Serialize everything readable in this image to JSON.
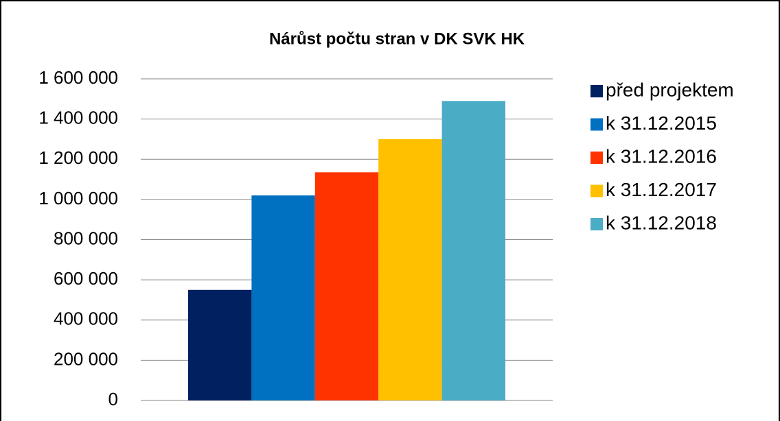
{
  "chart_data": {
    "type": "bar",
    "title": "Nárůst počtu stran v DK SVK HK",
    "categories": [
      null
    ],
    "series": [
      {
        "name": "před projektem",
        "color": "#002060",
        "values": [
          550000
        ]
      },
      {
        "name": "k 31.12.2015",
        "color": "#0070c0",
        "values": [
          1020000
        ]
      },
      {
        "name": "k 31.12.2016",
        "color": "#ff3300",
        "values": [
          1135000
        ]
      },
      {
        "name": "k 31.12.2017",
        "color": "#ffc000",
        "values": [
          1300000
        ]
      },
      {
        "name": "k 31.12.2018",
        "color": "#4bacc6",
        "values": [
          1490000
        ]
      }
    ],
    "ylim": [
      0,
      1600000
    ],
    "yticks": [
      0,
      {
        "value": 200000,
        "label": "200 000"
      },
      {
        "value": 400000,
        "label": "400 000"
      },
      {
        "value": 600000,
        "label": "600 000"
      },
      {
        "value": 800000,
        "label": "800 000"
      },
      {
        "value": 1000000,
        "label": "1 000 000"
      },
      {
        "value": 1200000,
        "label": "1 200 000"
      },
      {
        "value": 1400000,
        "label": "1 400 000"
      },
      {
        "value": 1600000,
        "label": "1 600 000"
      }
    ],
    "grid": true,
    "legend": "right"
  }
}
